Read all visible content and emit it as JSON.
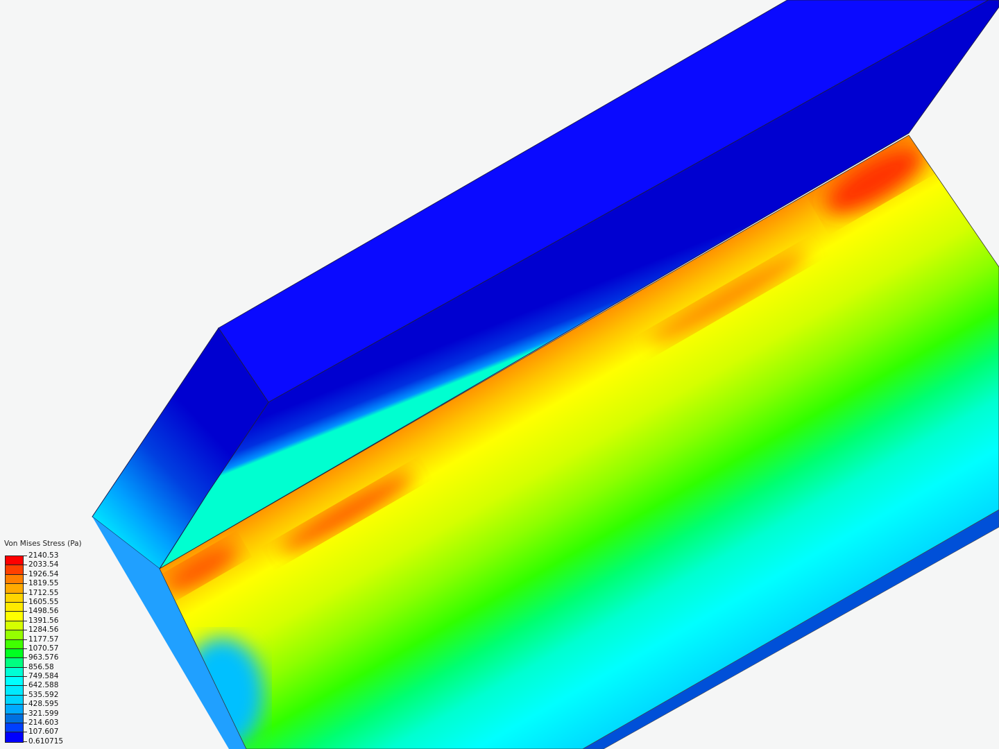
{
  "legend": {
    "title": "Von Mises Stress (Pa)",
    "labels": [
      "2140.53",
      "2033.54",
      "1926.54",
      "1819.55",
      "1712.55",
      "1605.55",
      "1498.56",
      "1391.56",
      "1284.56",
      "1177.57",
      "1070.57",
      "963.576",
      "856.58",
      "749.584",
      "642.588",
      "535.592",
      "428.595",
      "321.599",
      "214.603",
      "107.607",
      "0.610715"
    ],
    "band_colors": [
      "#ff0000",
      "#ff4000",
      "#ff7f00",
      "#ffaa00",
      "#ffd500",
      "#ffea00",
      "#ffff00",
      "#d5ff00",
      "#95ff00",
      "#40ff00",
      "#00ff20",
      "#00ff80",
      "#00ffd5",
      "#00ffff",
      "#00eaff",
      "#00d5ff",
      "#00aaff",
      "#0070e0",
      "#0040ff",
      "#0000ff"
    ]
  },
  "colors": {
    "background": "#f5f6f6",
    "top_face": "#0a0aff",
    "slope_face": "#0000d0"
  }
}
